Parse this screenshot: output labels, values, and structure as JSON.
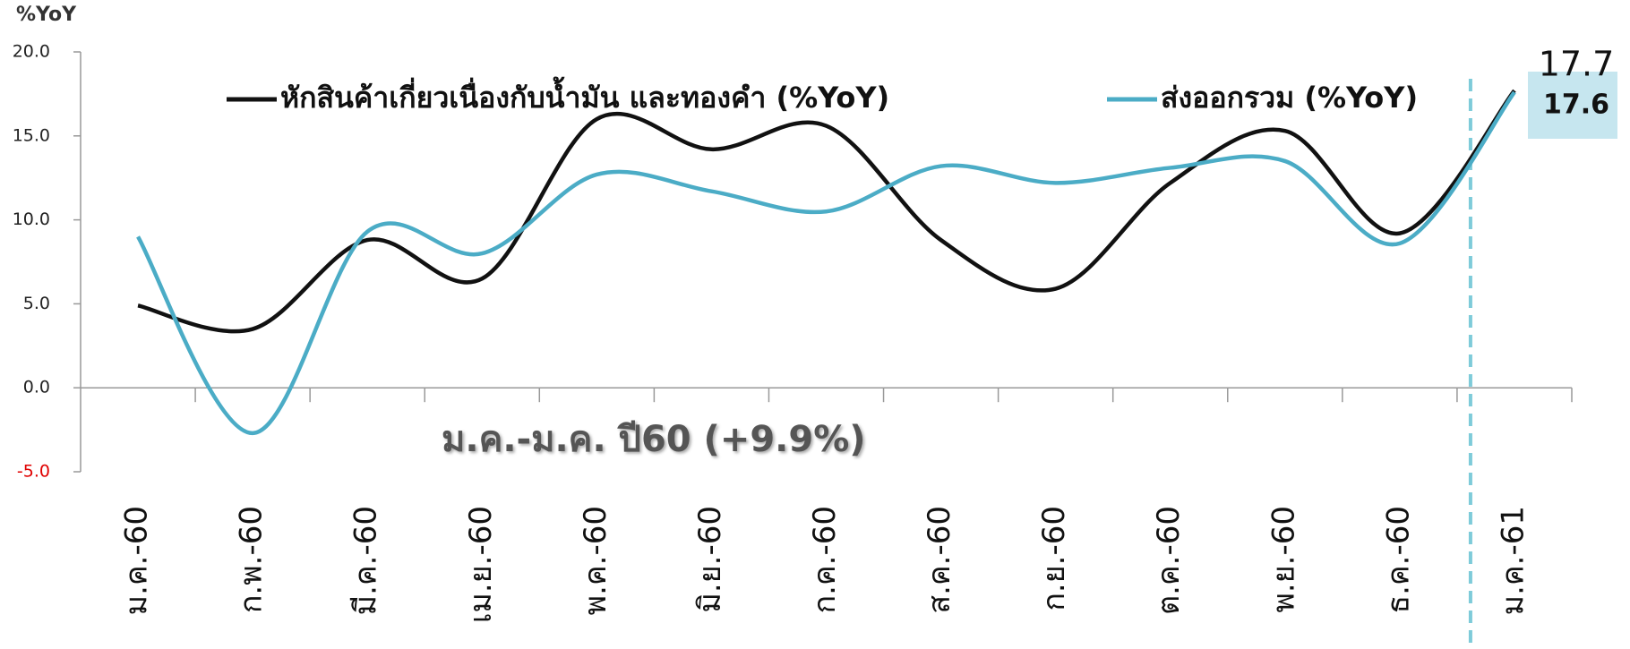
{
  "chart_data": {
    "type": "line",
    "ylabel": "%YoY",
    "categories": [
      "ม.ค.-60",
      "ก.พ.-60",
      "มี.ค.-60",
      "เม.ย.-60",
      "พ.ค.-60",
      "มิ.ย.-60",
      "ก.ค.-60",
      "ส.ค.-60",
      "ก.ย.-60",
      "ต.ค.-60",
      "พ.ย.-60",
      "ธ.ค.-60",
      "ม.ค.-61"
    ],
    "series": [
      {
        "name": "หักสินค้าเกี่ยวเนื่องกับน้ำมัน และทองคำ (%YoY)",
        "color": "#111111",
        "values": [
          4.9,
          3.5,
          8.8,
          6.5,
          16.0,
          14.2,
          15.6,
          8.8,
          5.9,
          12.2,
          15.3,
          9.2,
          17.7
        ],
        "end_label": "17.7"
      },
      {
        "name": "ส่งออกรวม (%YoY)",
        "color": "#4bacc6",
        "values": [
          9.0,
          -2.7,
          9.3,
          8.0,
          12.7,
          11.7,
          10.5,
          13.2,
          12.2,
          13.1,
          13.5,
          8.6,
          17.6
        ],
        "end_label": "17.6"
      }
    ],
    "annotation": "ม.ค.-ม.ค. ปี60 (+9.9%)",
    "ylim": [
      -5,
      20
    ],
    "yticks": [
      {
        "value": -5,
        "label": "-5.0"
      },
      {
        "value": 0,
        "label": "0.0"
      },
      {
        "value": 5,
        "label": "5.0"
      },
      {
        "value": 10,
        "label": "10.0"
      },
      {
        "value": 15,
        "label": "15.0"
      },
      {
        "value": 20,
        "label": "20.0"
      }
    ],
    "negative_tick_color": "#e00000",
    "smooth": true,
    "grid": false
  }
}
